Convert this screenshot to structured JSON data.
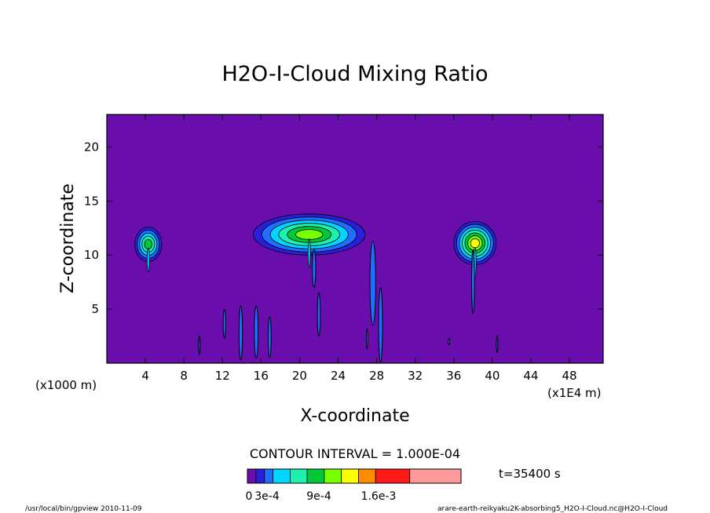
{
  "chart_data": {
    "type": "heatmap",
    "title": "H2O-I-Cloud Mixing Ratio",
    "xlabel": "X-coordinate",
    "ylabel": "Z-coordinate",
    "x_unit_left": "(x1000 m)",
    "x_unit_right": "(x1E4 m)",
    "xlim": [
      0,
      51.5
    ],
    "ylim": [
      0,
      23
    ],
    "x_ticks": [
      4,
      8,
      12,
      16,
      20,
      24,
      28,
      32,
      36,
      40,
      44,
      48
    ],
    "y_ticks": [
      5,
      10,
      15,
      20
    ],
    "contour_interval_label": "CONTOUR INTERVAL = 1.000E-04",
    "time_label": "t=35400 s",
    "background_color": "#6a0dad",
    "levels": [
      0,
      0.0001,
      0.0002,
      0.0003,
      0.0004,
      0.0005,
      0.0006,
      0.0007,
      0.0008,
      0.0009,
      0.0011,
      0.0016,
      0.002
    ],
    "colorbar": {
      "colors": [
        "#6a0dad",
        "#2a1fd8",
        "#1f6fff",
        "#00d4ff",
        "#1ef0b0",
        "#00c838",
        "#78ff00",
        "#ffff00",
        "#ff8c00",
        "#ff1a1a",
        "#ff9a9a"
      ],
      "tick_labels": [
        "0",
        "3e-4",
        "9e-4",
        "1.6e-3"
      ]
    },
    "clouds": [
      {
        "x": 4.3,
        "z": 11.0,
        "rx": 1.4,
        "rz": 1.6,
        "max_level": 5
      },
      {
        "x": 21.0,
        "z": 11.9,
        "rx": 5.8,
        "rz": 1.9,
        "max_level": 6
      },
      {
        "x": 38.2,
        "z": 11.1,
        "rx": 2.2,
        "rz": 2.0,
        "max_level": 7
      }
    ],
    "streaks": [
      {
        "x": 9.6,
        "z0": 0.8,
        "z1": 2.5,
        "w": 0.15
      },
      {
        "x": 12.2,
        "z0": 2.3,
        "z1": 5.0,
        "w": 0.25
      },
      {
        "x": 13.9,
        "z0": 0.3,
        "z1": 5.3,
        "w": 0.35
      },
      {
        "x": 15.5,
        "z0": 0.5,
        "z1": 5.3,
        "w": 0.4
      },
      {
        "x": 16.9,
        "z0": 0.5,
        "z1": 4.3,
        "w": 0.3
      },
      {
        "x": 21.5,
        "z0": 7.0,
        "z1": 10.5,
        "w": 0.35
      },
      {
        "x": 22.0,
        "z0": 2.5,
        "z1": 6.5,
        "w": 0.3
      },
      {
        "x": 27.6,
        "z0": 3.5,
        "z1": 11.3,
        "w": 0.6
      },
      {
        "x": 28.4,
        "z0": 0.1,
        "z1": 7.0,
        "w": 0.4
      },
      {
        "x": 27.0,
        "z0": 1.3,
        "z1": 3.2,
        "w": 0.12
      },
      {
        "x": 38.0,
        "z0": 4.6,
        "z1": 10.5,
        "w": 0.3
      },
      {
        "x": 40.5,
        "z0": 1.0,
        "z1": 2.5,
        "w": 0.15
      },
      {
        "x": 35.5,
        "z0": 1.7,
        "z1": 2.3,
        "w": 0.15
      }
    ]
  },
  "footer": {
    "left": "/usr/local/bin/gpview  2010-11-09",
    "right": "arare-earth-reikyaku2K-absorbing5_H2O-I-Cloud.nc@H2O-I-Cloud"
  }
}
